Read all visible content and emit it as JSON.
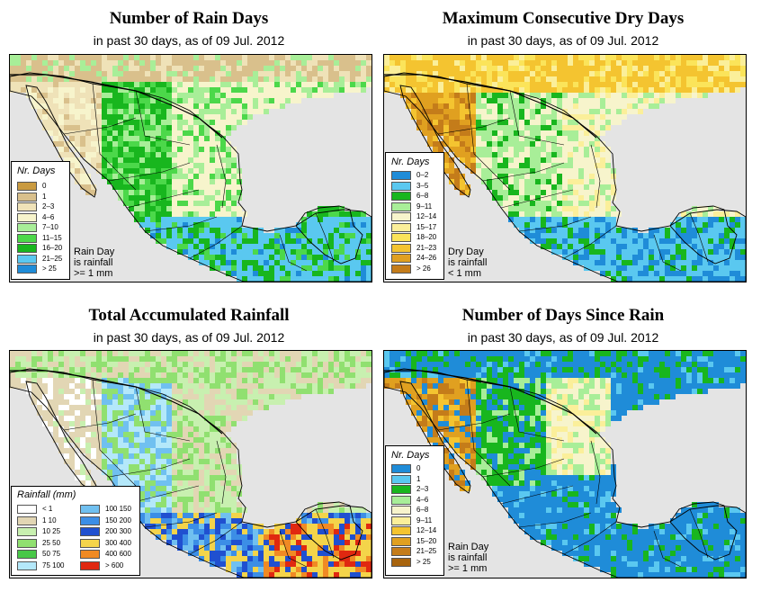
{
  "panels": [
    {
      "id": "rain-days",
      "title": "Number of Rain Days",
      "subtitle": "in past 30 days, as of  09 Jul. 2012",
      "legend_title": "Nr. Days",
      "legend": [
        {
          "label": "0",
          "color": "#c99a40"
        },
        {
          "label": "1",
          "color": "#d9c08c"
        },
        {
          "label": "2–3",
          "color": "#efe2b8"
        },
        {
          "label": "4–6",
          "color": "#f7f4cc"
        },
        {
          "label": "7–10",
          "color": "#a8ee98"
        },
        {
          "label": "11–15",
          "color": "#4cd84a"
        },
        {
          "label": "16–20",
          "color": "#18b61e"
        },
        {
          "label": "21–25",
          "color": "#5ac8f0"
        },
        {
          "label": "> 25",
          "color": "#1f8cd8"
        }
      ],
      "note": [
        "Rain Day",
        "is rainfall",
        ">= 1 mm"
      ]
    },
    {
      "id": "dry-days",
      "title": "Maximum Consecutive Dry Days",
      "subtitle": "in past 30 days, as of  09 Jul. 2012",
      "legend_title": "Nr. Days",
      "legend": [
        {
          "label": "0–2",
          "color": "#1f8cd8"
        },
        {
          "label": "3–5",
          "color": "#5ac8f0"
        },
        {
          "label": "6–8",
          "color": "#18b61e"
        },
        {
          "label": "9–11",
          "color": "#a8ee98"
        },
        {
          "label": "12–14",
          "color": "#f7f4cc"
        },
        {
          "label": "15–17",
          "color": "#fbef9a"
        },
        {
          "label": "18–20",
          "color": "#fbe45a"
        },
        {
          "label": "21–23",
          "color": "#f4c430"
        },
        {
          "label": "24–26",
          "color": "#e0a020"
        },
        {
          "label": "> 26",
          "color": "#c47c1a"
        }
      ],
      "note": [
        "Dry Day",
        "is rainfall",
        "< 1 mm"
      ]
    },
    {
      "id": "total-rain",
      "title": "Total Accumulated Rainfall",
      "subtitle": "in past 30 days, as of  09 Jul. 2012",
      "legend_title": "Rainfall (mm)",
      "legend": [
        {
          "label": "< 1",
          "color": "#ffffff"
        },
        {
          "label": "1   10",
          "color": "#e2d6b4"
        },
        {
          "label": "10   25",
          "color": "#c8f0b0"
        },
        {
          "label": "25   50",
          "color": "#90e070"
        },
        {
          "label": "50   75",
          "color": "#48c848"
        },
        {
          "label": "75   100",
          "color": "#b4e8fa"
        },
        {
          "label": "100  150",
          "color": "#70c0f0"
        },
        {
          "label": "150  200",
          "color": "#3c8ee6"
        },
        {
          "label": "200  300",
          "color": "#2050d0"
        },
        {
          "label": "300  400",
          "color": "#f4d44a"
        },
        {
          "label": "400  600",
          "color": "#f08a24"
        },
        {
          "label": "> 600",
          "color": "#e02810"
        }
      ],
      "note": []
    },
    {
      "id": "since-rain",
      "title": "Number of Days Since Rain",
      "subtitle": "in past 30 days, as of  09 Jul. 2012",
      "legend_title": "Nr. Days",
      "legend": [
        {
          "label": "0",
          "color": "#1f8cd8"
        },
        {
          "label": "1",
          "color": "#5ac8f0"
        },
        {
          "label": "2–3",
          "color": "#18b61e"
        },
        {
          "label": "4–6",
          "color": "#a8ee98"
        },
        {
          "label": "6–8",
          "color": "#f7f4cc"
        },
        {
          "label": "9–11",
          "color": "#fbef9a"
        },
        {
          "label": "12–14",
          "color": "#f4c430"
        },
        {
          "label": "15–20",
          "color": "#e0a020"
        },
        {
          "label": "21–25",
          "color": "#c47c1a"
        },
        {
          "label": "> 25",
          "color": "#a8640e"
        }
      ],
      "note": [
        "Rain Day",
        "is rainfall",
        ">= 1 mm"
      ]
    }
  ]
}
